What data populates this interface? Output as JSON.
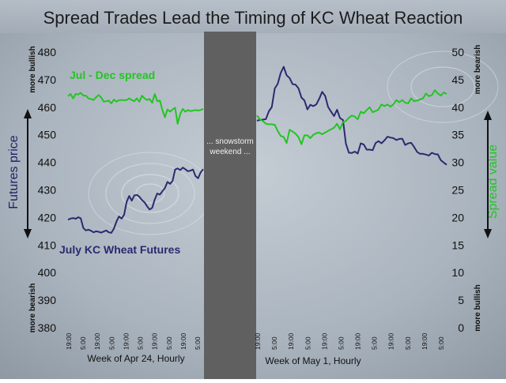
{
  "chart_data": {
    "type": "line",
    "title": "Spread Trades Lead the Timing of KC Wheat Reaction",
    "y_left": {
      "label": "Futures price",
      "range": [
        380,
        480
      ],
      "ticks": [
        380,
        390,
        400,
        410,
        420,
        430,
        440,
        450,
        460,
        470,
        480
      ],
      "top_note": "more bullish",
      "bottom_note": "more bearish"
    },
    "y_right": {
      "label": "Spread value",
      "range": [
        0,
        50
      ],
      "ticks": [
        0,
        5,
        10,
        15,
        20,
        25,
        30,
        35,
        40,
        45,
        50
      ],
      "top_note": "more bearish",
      "bottom_note": "more bullish"
    },
    "x_groups": [
      {
        "label": "Week of Apr 24, Hourly",
        "ticks": [
          "19:00",
          "5:00",
          "19:00",
          "5:00",
          "19:00",
          "5:00",
          "19:00",
          "5:00",
          "19:00",
          "5:00"
        ]
      },
      {
        "label": "Week of May 1, Hourly",
        "ticks": [
          "19:00",
          "5:00",
          "19:00",
          "5:00",
          "19:00",
          "5:00",
          "19:00",
          "5:00",
          "19:00",
          "5:00",
          "19:00",
          "5:00"
        ]
      }
    ],
    "gap_annotation": "... snowstorm weekend ...",
    "series": [
      {
        "name": "July KC Wheat Futures",
        "axis": "left",
        "color": "#2a2a6e",
        "week1": [
          419.2,
          419.6,
          419.8,
          419.5,
          420.1,
          419.7,
          416.2,
          415.3,
          415.6,
          415.2,
          414.6,
          415.0,
          414.8,
          414.5,
          414.9,
          415.3,
          414.6,
          414.4,
          416.0,
          418.5,
          420.4,
          419.6,
          421.0,
          425.7,
          427.8,
          426.1,
          428.0,
          428.2,
          427.5,
          426.3,
          425.5,
          424.1,
          422.9,
          423.5,
          426.5,
          428.7,
          428.3,
          429.5,
          430.7,
          432.9,
          432.2,
          433.3,
          437.4,
          437.8,
          437.2,
          438.1,
          437.5,
          436.8,
          437.0,
          437.4,
          435.0,
          434.2,
          436.4,
          437.5
        ],
        "week2": [
          455.1,
          455.4,
          455.5,
          455.7,
          458.5,
          460.1,
          466.8,
          468.5,
          472.4,
          474.7,
          471.6,
          470.6,
          468.4,
          468.2,
          466.9,
          463.5,
          462.5,
          459.2,
          460.9,
          460.4,
          461.0,
          463.1,
          465.6,
          464.1,
          460.1,
          458.4,
          456.8,
          459.1,
          456.1,
          455.4,
          446.8,
          443.5,
          443.4,
          443.9,
          443.2,
          446.9,
          446.5,
          444.6,
          444.6,
          444.4,
          447.0,
          447.7,
          446.9,
          448.0,
          449.3,
          449.0,
          448.8,
          448.1,
          448.5,
          448.6,
          446.3,
          446.9,
          447.1,
          445.6,
          443.8,
          443.1,
          443.1,
          442.8,
          442.5,
          443.5,
          443.0,
          442.9,
          440.8,
          439.9,
          439.1
        ]
      },
      {
        "name": "Jul - Dec spread",
        "axis": "right",
        "color": "#22c522",
        "week1": [
          42.0,
          42.4,
          41.6,
          42.4,
          42.3,
          42.6,
          42.1,
          42.1,
          41.6,
          41.5,
          41.3,
          41.8,
          42.2,
          41.8,
          41.0,
          41.1,
          41.2,
          40.7,
          41.4,
          41.0,
          41.3,
          41.3,
          41.3,
          41.3,
          41.6,
          41.3,
          41.1,
          41.6,
          41.0,
          42.1,
          41.6,
          41.3,
          41.5,
          40.8,
          42.4,
          41.1,
          41.2,
          39.5,
          38.2,
          39.6,
          39.2,
          39.6,
          39.9,
          37.0,
          38.8,
          39.7,
          39.2,
          39.5,
          39.3,
          39.4,
          39.5,
          39.4,
          39.5,
          39.7
        ],
        "week2": [
          38.5,
          37.8,
          37.5,
          37.0,
          36.9,
          36.9,
          36.8,
          35.7,
          34.8,
          34.6,
          33.5,
          35.9,
          35.6,
          35.2,
          34.6,
          33.3,
          34.9,
          34.9,
          34.4,
          35.0,
          35.3,
          35.4,
          35.1,
          35.4,
          35.7,
          36.0,
          36.3,
          37.0,
          36.0,
          37.3,
          37.5,
          38.1,
          38.5,
          38.3,
          37.8,
          39.2,
          38.9,
          39.5,
          40.0,
          39.1,
          39.3,
          39.6,
          40.5,
          40.2,
          40.5,
          40.1,
          40.5,
          41.3,
          40.9,
          41.3,
          40.8,
          40.7,
          41.6,
          41.1,
          41.2,
          41.4,
          41.6,
          42.5,
          42.0,
          42.2,
          43.1,
          42.5,
          42.1,
          42.7,
          42.4
        ]
      }
    ]
  }
}
